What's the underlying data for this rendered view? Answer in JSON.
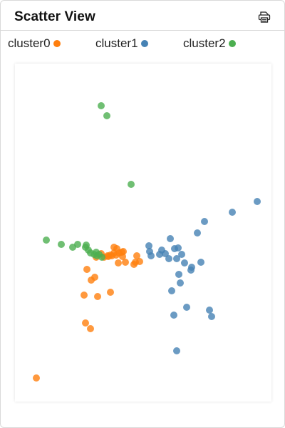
{
  "header": {
    "title": "Scatter View",
    "print_icon": "printer-icon"
  },
  "chart_data": {
    "type": "scatter",
    "title": "Scatter View",
    "xlabel": "",
    "ylabel": "",
    "xlim": [
      0,
      36
    ],
    "ylim": [
      0,
      47.3
    ],
    "grid": false,
    "legend_position": "top",
    "series": [
      {
        "name": "cluster0",
        "color": "#ff7f0e",
        "points": [
          [
            3.0,
            3.3
          ],
          [
            10.6,
            10.2
          ],
          [
            9.9,
            11.0
          ],
          [
            9.7,
            14.9
          ],
          [
            10.7,
            17.0
          ],
          [
            11.2,
            17.4
          ],
          [
            13.4,
            15.3
          ],
          [
            11.6,
            14.7
          ],
          [
            10.1,
            18.5
          ],
          [
            11.4,
            20.2
          ],
          [
            12.1,
            20.7
          ],
          [
            12.5,
            20.2
          ],
          [
            13.0,
            20.4
          ],
          [
            13.4,
            20.5
          ],
          [
            13.6,
            20.4
          ],
          [
            13.9,
            20.8
          ],
          [
            14.2,
            20.5
          ],
          [
            14.6,
            20.8
          ],
          [
            15.1,
            20.3
          ],
          [
            15.2,
            21.0
          ],
          [
            14.3,
            21.4
          ],
          [
            13.9,
            21.6
          ],
          [
            13.1,
            20.3
          ],
          [
            14.5,
            19.4
          ],
          [
            15.5,
            19.5
          ],
          [
            16.7,
            19.2
          ],
          [
            16.9,
            19.5
          ],
          [
            17.1,
            20.4
          ],
          [
            17.5,
            19.6
          ],
          [
            15.0,
            20.9
          ]
        ]
      },
      {
        "name": "cluster1",
        "color": "#4682b4",
        "points": [
          [
            34.0,
            28.0
          ],
          [
            30.5,
            26.5
          ],
          [
            26.6,
            25.2
          ],
          [
            25.6,
            23.6
          ],
          [
            21.8,
            22.8
          ],
          [
            20.6,
            21.2
          ],
          [
            18.8,
            21.8
          ],
          [
            18.9,
            21.0
          ],
          [
            19.1,
            20.4
          ],
          [
            20.3,
            20.6
          ],
          [
            21.1,
            20.7
          ],
          [
            21.6,
            20.0
          ],
          [
            22.4,
            21.4
          ],
          [
            22.9,
            21.5
          ],
          [
            23.4,
            20.6
          ],
          [
            22.7,
            20.0
          ],
          [
            23.8,
            19.4
          ],
          [
            24.7,
            18.4
          ],
          [
            26.1,
            19.5
          ],
          [
            24.8,
            18.8
          ],
          [
            23.2,
            16.6
          ],
          [
            22.0,
            15.5
          ],
          [
            24.1,
            13.2
          ],
          [
            22.3,
            12.1
          ],
          [
            27.3,
            12.8
          ],
          [
            27.6,
            11.9
          ],
          [
            22.7,
            7.1
          ],
          [
            23.0,
            17.8
          ]
        ]
      },
      {
        "name": "cluster2",
        "color": "#4caf50",
        "points": [
          [
            12.1,
            41.4
          ],
          [
            12.9,
            40.0
          ],
          [
            16.3,
            30.4
          ],
          [
            4.4,
            22.6
          ],
          [
            6.5,
            22.0
          ],
          [
            8.1,
            21.6
          ],
          [
            8.8,
            22.0
          ],
          [
            9.9,
            21.6
          ],
          [
            10.3,
            21.2
          ],
          [
            10.6,
            20.8
          ],
          [
            11.1,
            20.6
          ],
          [
            11.5,
            20.4
          ],
          [
            11.8,
            20.6
          ],
          [
            10.0,
            21.9
          ],
          [
            11.4,
            20.9
          ],
          [
            12.2,
            20.2
          ]
        ]
      }
    ]
  }
}
